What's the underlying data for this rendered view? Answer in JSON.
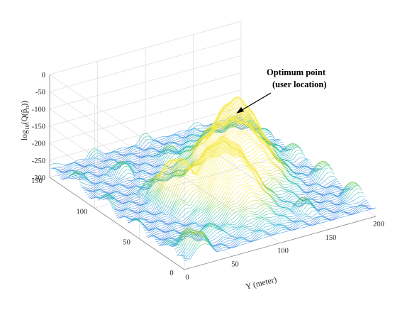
{
  "chart_data": {
    "type": "surface",
    "title": "",
    "zlabel": "log10(Q(p̂n))",
    "zlabel_parts": {
      "log": "log",
      "base": "10",
      "expr": "(Q(p̂",
      "sub": "n",
      "close": "))"
    },
    "ylabel": "Y (meter)",
    "xlabel": "",
    "x_ticks": [
      "0",
      "50",
      "100",
      "150"
    ],
    "y_ticks": [
      "0",
      "50",
      "100",
      "150",
      "200"
    ],
    "z_ticks": [
      "0",
      "-50",
      "-100",
      "-150",
      "-200",
      "-250",
      "-300"
    ],
    "xlim": [
      0,
      150
    ],
    "ylim": [
      0,
      200
    ],
    "zlim": [
      -300,
      0
    ],
    "grid": true,
    "colormap": [
      "#3f1fd6",
      "#3f6fe6",
      "#2fb3d9",
      "#39c59b",
      "#8fd14f",
      "#e2d63a",
      "#f7ea4a"
    ],
    "annotation": {
      "lines": [
        "Optimum point",
        "(user location)"
      ],
      "target": {
        "x": 100,
        "y": 150,
        "z": -95
      }
    },
    "peaks": [
      {
        "x": 55,
        "y": 95,
        "z": -95,
        "spread": 20
      },
      {
        "x": 100,
        "y": 150,
        "z": -95,
        "spread": 16
      },
      {
        "x": 80,
        "y": 130,
        "z": -110,
        "spread": 24
      },
      {
        "x": 70,
        "y": 60,
        "z": -150,
        "spread": 18
      },
      {
        "x": 120,
        "y": 175,
        "z": -195,
        "spread": 16
      },
      {
        "x": 10,
        "y": 20,
        "z": -220,
        "spread": 20
      }
    ]
  }
}
